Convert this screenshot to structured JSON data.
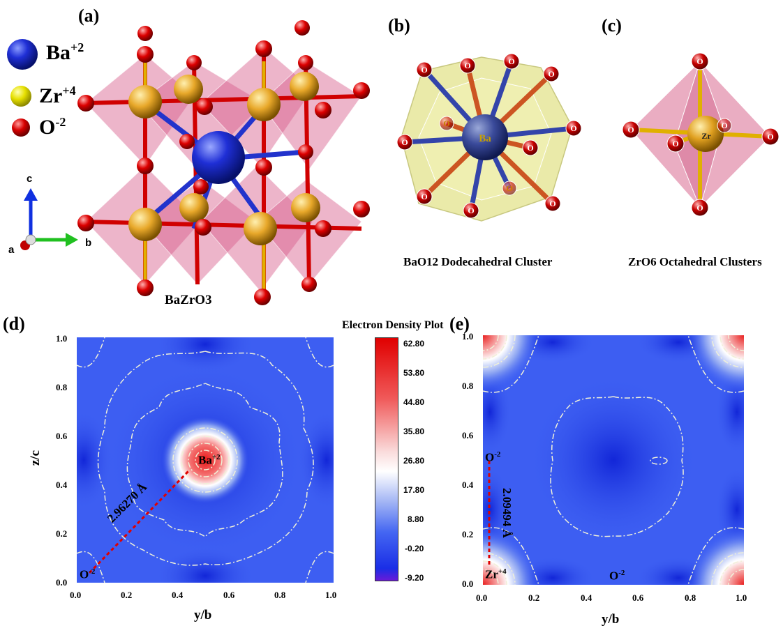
{
  "panels": {
    "a": {
      "label": "(a)",
      "caption": "BaZrO3"
    },
    "b": {
      "label": "(b)",
      "caption": "BaO12  Dodecahedral  Cluster",
      "center_atom": "Ba",
      "ligand": "O"
    },
    "c": {
      "label": "(c)",
      "caption": "ZrO6 Octahedral Clusters",
      "center_atom": "Zr",
      "ligand": "O"
    },
    "d": {
      "label": "(d)",
      "ylabel": "z/c",
      "xlabel": "y/b",
      "site_label_main": "Ba",
      "site_label_main_sup": "+2",
      "site_label_corner": "O",
      "site_label_corner_sup": "-2",
      "distance": "2.96270 Å"
    },
    "e": {
      "label": "(e)",
      "xlabel": "y/b",
      "site_label_top": "O",
      "site_label_top_sup": "-2",
      "site_label_zr": "Zr",
      "site_label_zr_sup": "+4",
      "site_label_o": "O",
      "site_label_o_sup": "-2",
      "distance": "2.09494 Å"
    }
  },
  "legend": [
    {
      "symbol": "Ba",
      "charge": "+2",
      "color": "#1f2fd6"
    },
    {
      "symbol": "Zr",
      "charge": "+4",
      "color": "#e6e000"
    },
    {
      "symbol": "O",
      "charge": "-2",
      "color": "#d80000"
    }
  ],
  "axes_triad": {
    "c": "c",
    "a": "a",
    "b": "b"
  },
  "colorbar": {
    "title": "Electron Density Plot",
    "ticks": [
      "62.80",
      "53.80",
      "44.80",
      "35.80",
      "26.80",
      "17.80",
      "8.80",
      "-0.20",
      "-9.20"
    ]
  },
  "chart_data": {
    "type": "heatmap",
    "x_ticks": [
      "0.0",
      "0.2",
      "0.4",
      "0.6",
      "0.8",
      "1.0"
    ],
    "y_ticks": [
      "0.0",
      "0.2",
      "0.4",
      "0.6",
      "0.8",
      "1.0"
    ],
    "xlim": [
      0,
      1
    ],
    "ylim": [
      0,
      1
    ],
    "value_range": [
      -9.2,
      62.8
    ]
  }
}
